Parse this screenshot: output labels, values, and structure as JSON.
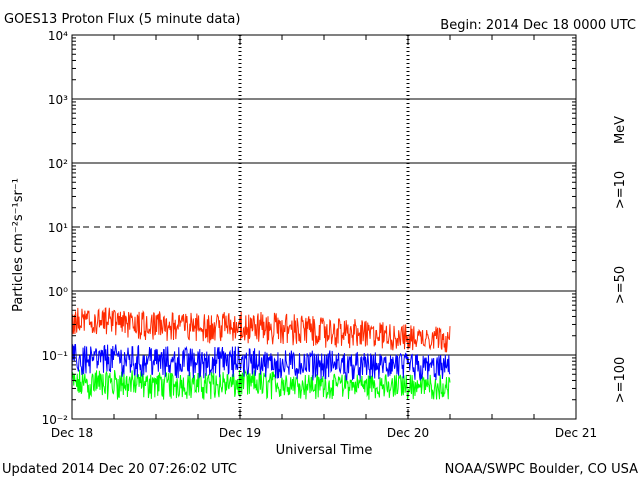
{
  "chart_data": {
    "type": "line",
    "title": "GOES13 Proton Flux (5 minute data)",
    "begin_label": "Begin: 2014 Dec 18 0000 UTC",
    "xlabel": "Universal Time",
    "ylabel": "Particles cm⁻²s⁻¹sr⁻¹",
    "units_label": "MeV",
    "updated_label": "Updated 2014 Dec 20 07:26:02 UTC",
    "source_label": "NOAA/SWPC Boulder, CO USA",
    "x_ticks": [
      {
        "day": 0,
        "label": "Dec 18"
      },
      {
        "day": 1,
        "label": "Dec 19"
      },
      {
        "day": 2,
        "label": "Dec 20"
      },
      {
        "day": 3,
        "label": "Dec 21"
      }
    ],
    "xlim_days": [
      0,
      3
    ],
    "y_scale": "log",
    "ylim": [
      0.01,
      10000
    ],
    "y_ticks": [
      {
        "exp": -2,
        "label": "10⁻²"
      },
      {
        "exp": -1,
        "label": "10⁻¹"
      },
      {
        "exp": 0,
        "label": "10⁰"
      },
      {
        "exp": 1,
        "label": "10¹"
      },
      {
        "exp": 2,
        "label": "10²"
      },
      {
        "exp": 3,
        "label": "10³"
      },
      {
        "exp": 4,
        "label": "10⁴"
      }
    ],
    "gridlines": [
      {
        "value": 0.1,
        "style": "solid"
      },
      {
        "value": 1,
        "style": "solid"
      },
      {
        "value": 10,
        "style": "dashed"
      },
      {
        "value": 100,
        "style": "solid"
      },
      {
        "value": 1000,
        "style": "solid"
      }
    ],
    "series": [
      {
        "name": ">=10",
        "color": "#ff2a00",
        "x_days": [
          0,
          0.25,
          0.5,
          0.75,
          1,
          1.25,
          1.5,
          1.75,
          2,
          2.25
        ],
        "values": [
          0.3,
          0.3,
          0.28,
          0.27,
          0.27,
          0.25,
          0.22,
          0.2,
          0.18,
          0.2
        ],
        "low": [
          0.18,
          0.18,
          0.16,
          0.15,
          0.15,
          0.14,
          0.13,
          0.12,
          0.11,
          0.11
        ],
        "high": [
          0.55,
          0.55,
          0.5,
          0.45,
          0.5,
          0.45,
          0.4,
          0.35,
          0.3,
          0.3
        ]
      },
      {
        "name": ">=50",
        "color": "#0000ff",
        "x_days": [
          0,
          0.25,
          0.5,
          0.75,
          1,
          1.25,
          1.5,
          1.75,
          2,
          2.25
        ],
        "values": [
          0.08,
          0.08,
          0.08,
          0.075,
          0.075,
          0.07,
          0.065,
          0.065,
          0.06,
          0.06
        ],
        "low": [
          0.045,
          0.045,
          0.045,
          0.042,
          0.042,
          0.04,
          0.04,
          0.04,
          0.038,
          0.038
        ],
        "high": [
          0.15,
          0.15,
          0.14,
          0.13,
          0.14,
          0.12,
          0.12,
          0.11,
          0.11,
          0.1
        ]
      },
      {
        "name": ">=100",
        "color": "#00ff00",
        "x_days": [
          0,
          0.25,
          0.5,
          0.75,
          1,
          1.25,
          1.5,
          1.75,
          2,
          2.25
        ],
        "values": [
          0.035,
          0.035,
          0.035,
          0.034,
          0.034,
          0.033,
          0.032,
          0.032,
          0.031,
          0.031
        ],
        "low": [
          0.02,
          0.02,
          0.02,
          0.02,
          0.02,
          0.02,
          0.02,
          0.02,
          0.02,
          0.02
        ],
        "high": [
          0.06,
          0.06,
          0.055,
          0.055,
          0.06,
          0.055,
          0.05,
          0.05,
          0.05,
          0.05
        ]
      }
    ],
    "grid": true,
    "legend": "right, vertical",
    "series_colors": {
      "ge10": "#ff2a00",
      "ge50": "#0000ff",
      "ge100": "#00ff00"
    }
  }
}
